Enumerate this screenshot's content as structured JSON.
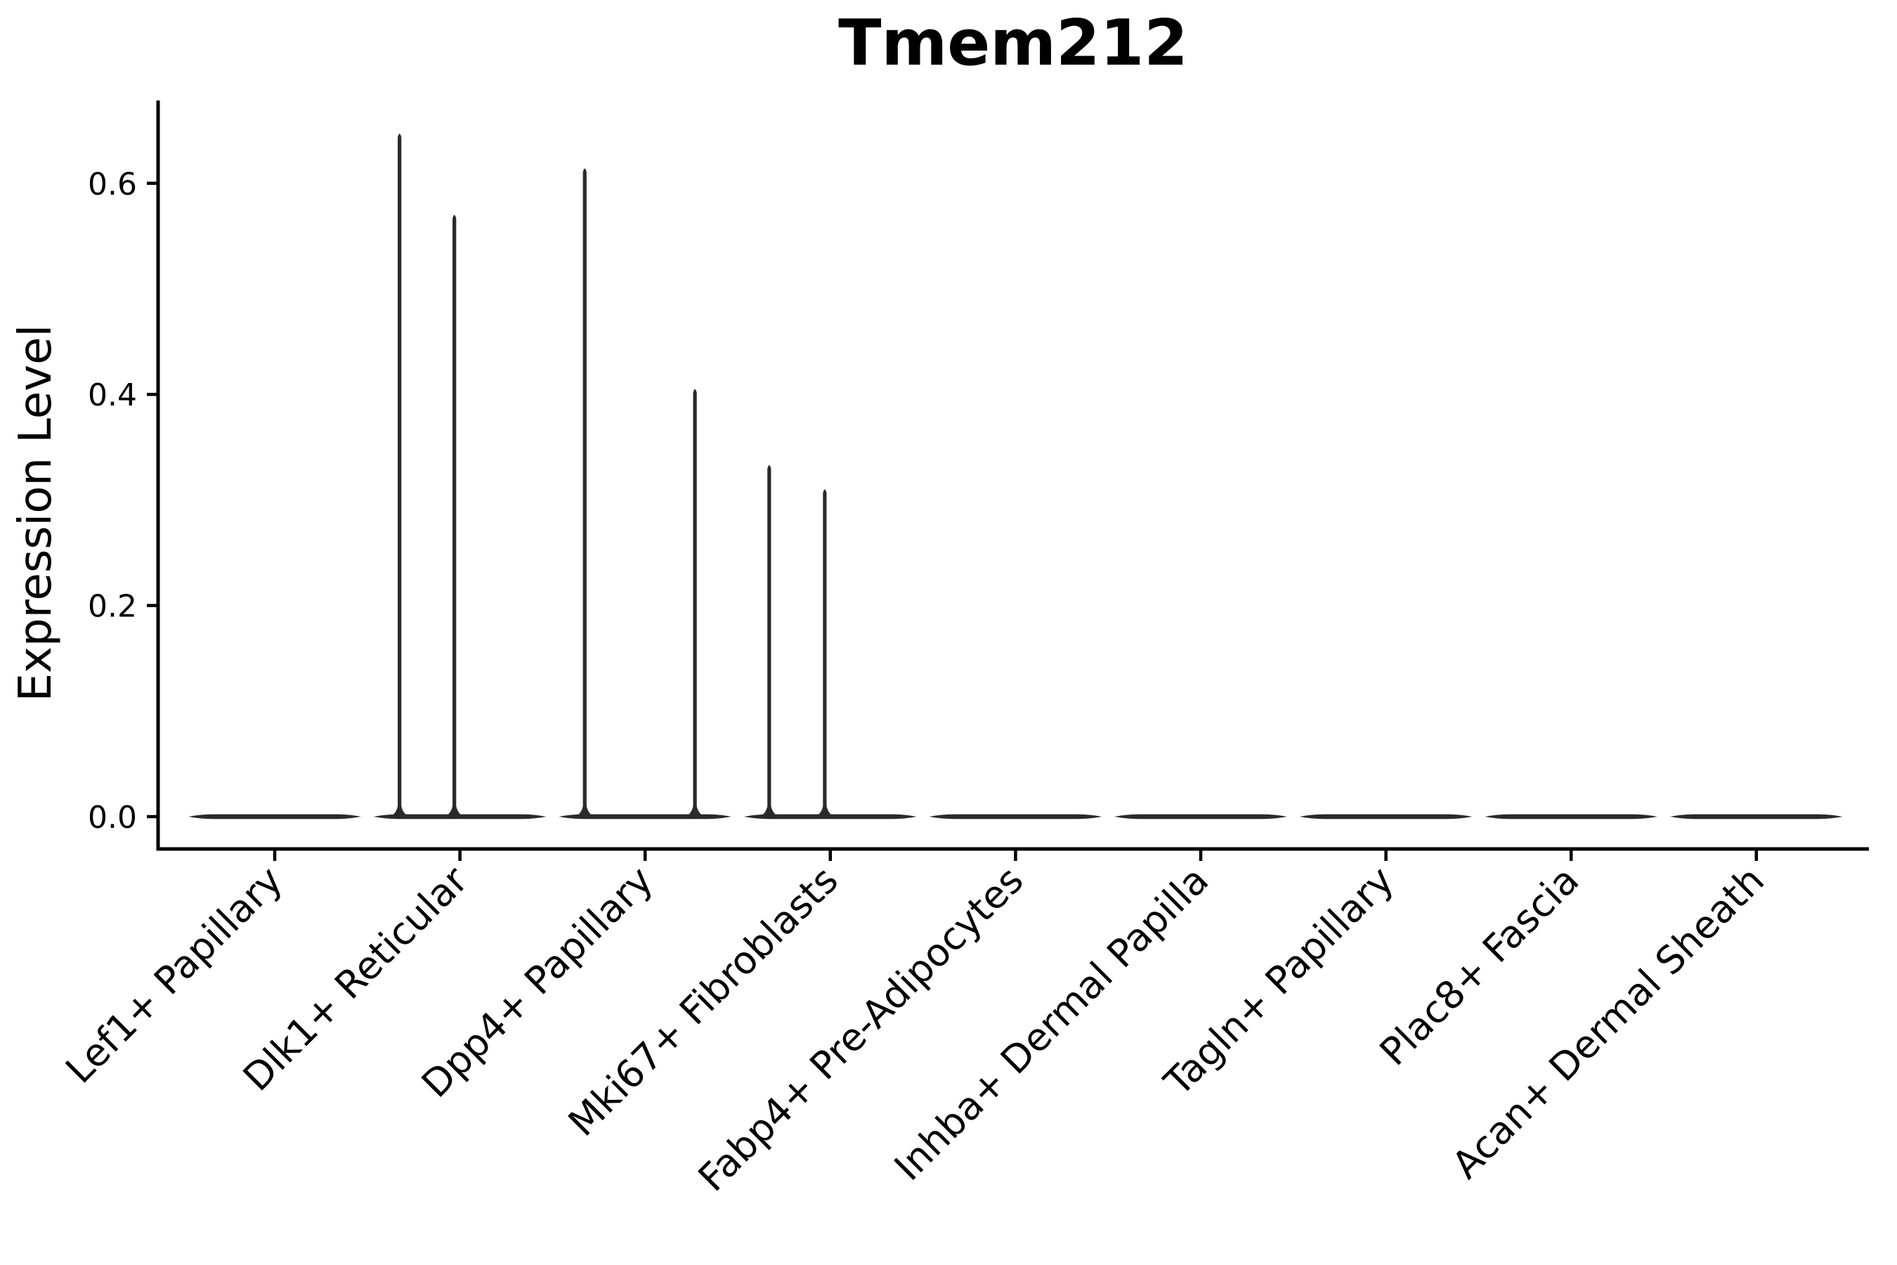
{
  "chart_data": {
    "type": "violin",
    "title": "Tmem212",
    "ylabel": "Expression Level",
    "xlabel": "",
    "grid": false,
    "legend": false,
    "ylim": [
      -0.03,
      0.68
    ],
    "yticks": [
      "0.0",
      "0.2",
      "0.4",
      "0.6"
    ],
    "categories": [
      "Lef1+ Papillary",
      "Dlk1+ Reticular",
      "Dpp4+ Papillary",
      "Mki67+ Fibroblasts",
      "Fabp4+ Pre-Adipocytes",
      "Inhba+ Dermal Papilla",
      "Tagln+ Papillary",
      "Plac8+ Fascia",
      "Acan+ Dermal Sheath"
    ],
    "violins": [
      {
        "category": "Lef1+ Papillary",
        "baseline_value": 0.0,
        "spikes": []
      },
      {
        "category": "Dlk1+ Reticular",
        "baseline_value": 0.0,
        "spikes": [
          {
            "offset_frac": -0.326,
            "value": 0.647
          },
          {
            "offset_frac": -0.03,
            "value": 0.57
          }
        ]
      },
      {
        "category": "Dpp4+ Papillary",
        "baseline_value": 0.0,
        "spikes": [
          {
            "offset_frac": -0.326,
            "value": 0.614
          },
          {
            "offset_frac": 0.269,
            "value": 0.405
          }
        ]
      },
      {
        "category": "Mki67+ Fibroblasts",
        "baseline_value": 0.0,
        "spikes": [
          {
            "offset_frac": -0.33,
            "value": 0.333
          },
          {
            "offset_frac": -0.03,
            "value": 0.31
          }
        ]
      },
      {
        "category": "Fabp4+ Pre-Adipocytes",
        "baseline_value": 0.0,
        "spikes": []
      },
      {
        "category": "Inhba+ Dermal Papilla",
        "baseline_value": 0.0,
        "spikes": []
      },
      {
        "category": "Tagln+ Papillary",
        "baseline_value": 0.0,
        "spikes": []
      },
      {
        "category": "Plac8+ Fascia",
        "baseline_value": 0.0,
        "spikes": []
      },
      {
        "category": "Acan+ Dermal Sheath",
        "baseline_value": 0.0,
        "spikes": []
      }
    ],
    "colors": {
      "violin_outline": "#2a2a2a",
      "axis": "#000000",
      "text": "#000000",
      "background": "#ffffff"
    }
  }
}
